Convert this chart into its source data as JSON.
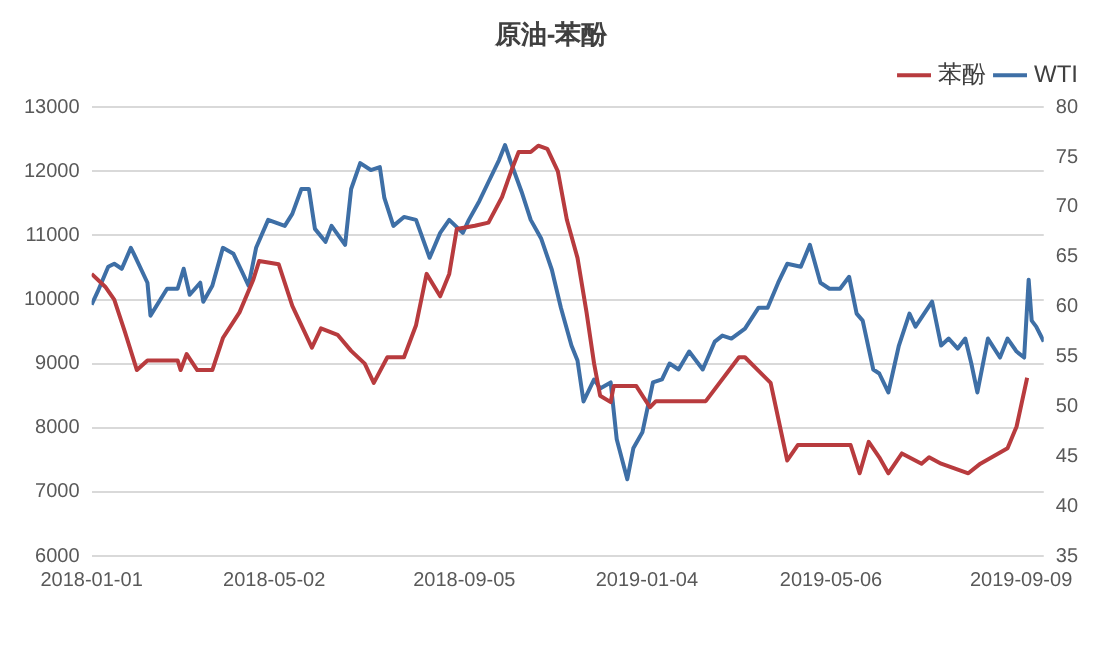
{
  "chart_data": {
    "type": "line",
    "title": "原油-苯酚",
    "legend": "top right",
    "grid": "y",
    "marker": "none",
    "line_style": "solid",
    "xlim": [
      "2018-01-01",
      "2019-09-24"
    ],
    "xticks": [
      "2018-01-01",
      "2018-05-02",
      "2018-09-05",
      "2019-01-04",
      "2019-05-06",
      "2019-09-09"
    ],
    "ylim": [
      6000,
      13000
    ],
    "yticks": [
      6000,
      7000,
      8000,
      9000,
      10000,
      11000,
      12000,
      13000
    ],
    "y2lim": [
      35,
      80
    ],
    "y2ticks": [
      35,
      40,
      45,
      50,
      55,
      60,
      65,
      70,
      75,
      80
    ],
    "series": [
      {
        "name": "苯酚",
        "color": "#b83b3e",
        "x": [
          "2018-01-01",
          "2018-01-10",
          "2018-01-16",
          "2018-01-23",
          "2018-01-31",
          "2018-02-07",
          "2018-02-27",
          "2018-03-01",
          "2018-03-05",
          "2018-03-12",
          "2018-03-22",
          "2018-03-29",
          "2018-04-09",
          "2018-04-18",
          "2018-04-22",
          "2018-05-05",
          "2018-05-14",
          "2018-05-27",
          "2018-06-02",
          "2018-06-13",
          "2018-06-22",
          "2018-07-01",
          "2018-07-07",
          "2018-07-16",
          "2018-07-27",
          "2018-08-04",
          "2018-08-11",
          "2018-08-20",
          "2018-08-26",
          "2018-08-31",
          "2018-09-12",
          "2018-09-21",
          "2018-09-30",
          "2018-10-06",
          "2018-10-11",
          "2018-10-19",
          "2018-10-24",
          "2018-10-30",
          "2018-11-06",
          "2018-11-12",
          "2018-11-19",
          "2018-11-25",
          "2018-11-30",
          "2018-12-04",
          "2018-12-11",
          "2018-12-13",
          "2018-12-28",
          "2019-01-06",
          "2019-01-10",
          "2019-02-12",
          "2019-03-06",
          "2019-03-10",
          "2019-03-27",
          "2019-04-03",
          "2019-04-07",
          "2019-04-14",
          "2019-05-19",
          "2019-05-25",
          "2019-05-31",
          "2019-06-07",
          "2019-06-13",
          "2019-06-22",
          "2019-07-05",
          "2019-07-10",
          "2019-07-18",
          "2019-08-05",
          "2019-08-13",
          "2019-08-31",
          "2019-09-06",
          "2019-09-13"
        ],
        "values": [
          10400,
          10200,
          10000,
          9500,
          8900,
          9050,
          9050,
          8900,
          9150,
          8900,
          8900,
          9400,
          9800,
          10300,
          10600,
          10550,
          9900,
          9250,
          9550,
          9450,
          9200,
          9000,
          8700,
          9100,
          9100,
          9600,
          10400,
          10050,
          10400,
          11100,
          11150,
          11200,
          11600,
          12000,
          12300,
          12300,
          12400,
          12350,
          12000,
          11240,
          10650,
          9800,
          9000,
          8500,
          8400,
          8650,
          8650,
          8320,
          8415,
          8415,
          9100,
          9100,
          8700,
          7930,
          7490,
          7730,
          7730,
          7290,
          7780,
          7540,
          7290,
          7600,
          7440,
          7540,
          7440,
          7290,
          7440,
          7680,
          8020,
          8780
        ]
      },
      {
        "name": "WTI",
        "color": "#3e6fa6",
        "axis": "y2",
        "x": [
          "2018-01-01",
          "2018-01-05",
          "2018-01-12",
          "2018-01-16",
          "2018-01-21",
          "2018-01-27",
          "2018-01-29",
          "2018-02-07",
          "2018-02-09",
          "2018-02-20",
          "2018-02-27",
          "2018-03-03",
          "2018-03-07",
          "2018-03-14",
          "2018-03-16",
          "2018-03-22",
          "2018-03-29",
          "2018-04-05",
          "2018-04-11",
          "2018-04-15",
          "2018-04-20",
          "2018-04-28",
          "2018-05-09",
          "2018-05-14",
          "2018-05-20",
          "2018-05-25",
          "2018-05-29",
          "2018-06-05",
          "2018-06-09",
          "2018-06-18",
          "2018-06-22",
          "2018-06-28",
          "2018-07-05",
          "2018-07-11",
          "2018-07-14",
          "2018-07-20",
          "2018-07-27",
          "2018-08-04",
          "2018-08-13",
          "2018-08-20",
          "2018-08-26",
          "2018-09-04",
          "2018-09-08",
          "2018-09-15",
          "2018-09-21",
          "2018-09-28",
          "2018-10-02",
          "2018-10-06",
          "2018-10-13",
          "2018-10-19",
          "2018-10-26",
          "2018-11-02",
          "2018-11-08",
          "2018-11-15",
          "2018-11-19",
          "2018-11-23",
          "2018-11-30",
          "2018-12-04",
          "2018-12-11",
          "2018-12-15",
          "2018-12-22",
          "2018-12-26",
          "2019-01-01",
          "2019-01-08",
          "2019-01-14",
          "2019-01-19",
          "2019-01-25",
          "2019-02-01",
          "2019-02-10",
          "2019-02-18",
          "2019-02-23",
          "2019-03-01",
          "2019-03-10",
          "2019-03-19",
          "2019-03-25",
          "2019-04-01",
          "2019-04-07",
          "2019-04-16",
          "2019-04-22",
          "2019-04-29",
          "2019-05-05",
          "2019-05-12",
          "2019-05-18",
          "2019-05-23",
          "2019-05-27",
          "2019-06-03",
          "2019-06-07",
          "2019-06-13",
          "2019-06-20",
          "2019-06-27",
          "2019-07-01",
          "2019-07-12",
          "2019-07-18",
          "2019-07-23",
          "2019-07-29",
          "2019-08-03",
          "2019-08-07",
          "2019-08-11",
          "2019-08-18",
          "2019-08-26",
          "2019-08-31",
          "2019-09-06",
          "2019-09-11",
          "2019-09-14",
          "2019-09-16",
          "2019-09-19",
          "2019-09-24"
        ],
        "values": [
          60.2,
          61.5,
          64,
          64.3,
          63.8,
          65.9,
          65.3,
          62.4,
          59.1,
          61.8,
          61.8,
          63.8,
          61.2,
          62.4,
          60.5,
          62.1,
          65.9,
          65.3,
          63.4,
          62.1,
          65.9,
          68.7,
          68.1,
          69.3,
          71.8,
          71.8,
          67.8,
          66.5,
          68.1,
          66.2,
          71.8,
          74.4,
          73.7,
          74,
          70.9,
          68.1,
          69,
          68.7,
          64.9,
          67.4,
          68.7,
          67.4,
          68.7,
          70.6,
          72.5,
          74.7,
          76.2,
          74.4,
          71.5,
          68.7,
          66.8,
          63.7,
          59.9,
          56.1,
          54.6,
          50.5,
          52.7,
          51.8,
          52.4,
          46.7,
          42.7,
          45.8,
          47.4,
          52.4,
          52.7,
          54.3,
          53.7,
          55.5,
          53.7,
          56.5,
          57.1,
          56.8,
          57.8,
          59.9,
          59.9,
          62.4,
          64.3,
          64,
          66.2,
          62.4,
          61.8,
          61.8,
          63,
          59.3,
          58.6,
          53.7,
          53.3,
          51.4,
          56.1,
          59.3,
          58,
          60.5,
          56.1,
          56.8,
          55.8,
          56.8,
          54.3,
          51.4,
          56.8,
          54.9,
          56.8,
          55.5,
          54.9,
          62.7,
          58.6,
          58,
          56.5
        ]
      }
    ]
  }
}
